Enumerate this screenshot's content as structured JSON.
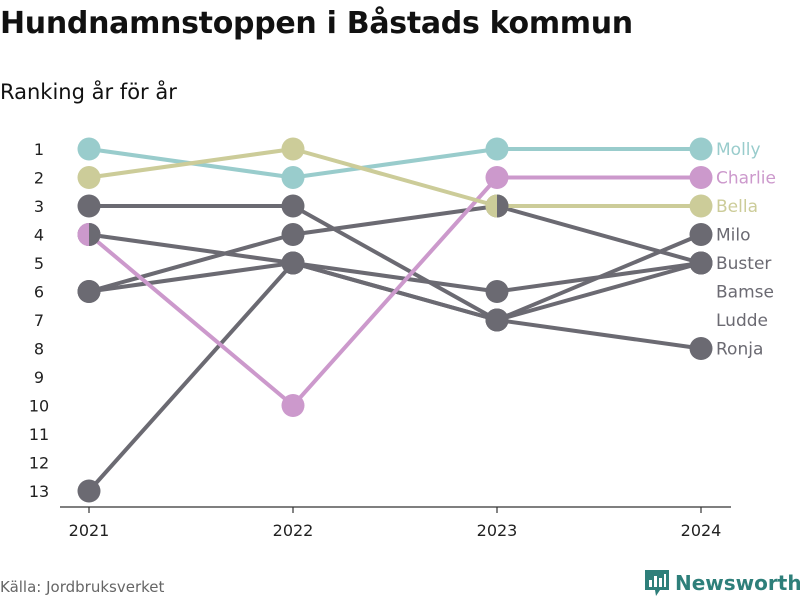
{
  "header": {
    "title": "Hundnamnstoppen i Båstads kommun",
    "subtitle": "Ranking år för år"
  },
  "footer": {
    "source": "Källa: Jordbruksverket",
    "brand": "Newsworthy",
    "brand_icon": "newsworthy-logo-icon"
  },
  "chart_data": {
    "type": "line",
    "title": "Hundnamnstoppen i Båstads kommun",
    "subtitle": "Ranking år för år",
    "x": [
      "2021",
      "2022",
      "2023",
      "2024"
    ],
    "y_ticks": [
      "1",
      "2",
      "3",
      "4",
      "5",
      "6",
      "7",
      "8",
      "9",
      "10",
      "11",
      "12",
      "13"
    ],
    "ylim": [
      1,
      13
    ],
    "y_inverted": true,
    "grid": false,
    "series": [
      {
        "name": "Molly",
        "values": [
          1,
          2,
          1,
          1
        ],
        "color": "#99cccc"
      },
      {
        "name": "Charlie",
        "values": [
          4,
          10,
          2,
          2
        ],
        "color": "#cc99cc"
      },
      {
        "name": "Bella",
        "values": [
          2,
          1,
          3,
          3
        ],
        "color": "#cccc99"
      },
      {
        "name": "Milo",
        "values": [
          13,
          5,
          7,
          4
        ],
        "color": "#6b6a72"
      },
      {
        "name": "Buster",
        "values": [
          3,
          3,
          7,
          5
        ],
        "color": "#6b6a72"
      },
      {
        "name": "Bamse",
        "values": [
          6,
          4,
          3,
          5
        ],
        "color": "#6b6a72"
      },
      {
        "name": "Ludde",
        "values": [
          4,
          5,
          6,
          5
        ],
        "color": "#6b6a72"
      },
      {
        "name": "Ronja",
        "values": [
          6,
          5,
          7,
          8
        ],
        "color": "#6b6a72"
      }
    ],
    "split_markers": [
      {
        "x": "2021",
        "y": 4,
        "colors": [
          "#cc99cc",
          "#6b6a72"
        ]
      },
      {
        "x": "2023",
        "y": 3,
        "colors": [
          "#cccc99",
          "#6b6a72"
        ]
      }
    ],
    "legend_labels": [
      {
        "name": "Molly",
        "rank": 1,
        "color": "#99cccc"
      },
      {
        "name": "Charlie",
        "rank": 2,
        "color": "#cc99cc"
      },
      {
        "name": "Bella",
        "rank": 3,
        "color": "#cccc99"
      },
      {
        "name": "Milo",
        "rank": 4,
        "color": "#6b6a72"
      },
      {
        "name": "Buster",
        "rank": 5,
        "color": "#6b6a72"
      },
      {
        "name": "Bamse",
        "rank": 6,
        "color": "#6b6a72"
      },
      {
        "name": "Ludde",
        "rank": 7,
        "color": "#6b6a72"
      },
      {
        "name": "Ronja",
        "rank": 8,
        "color": "#6b6a72"
      }
    ],
    "legend_placement": "right"
  }
}
